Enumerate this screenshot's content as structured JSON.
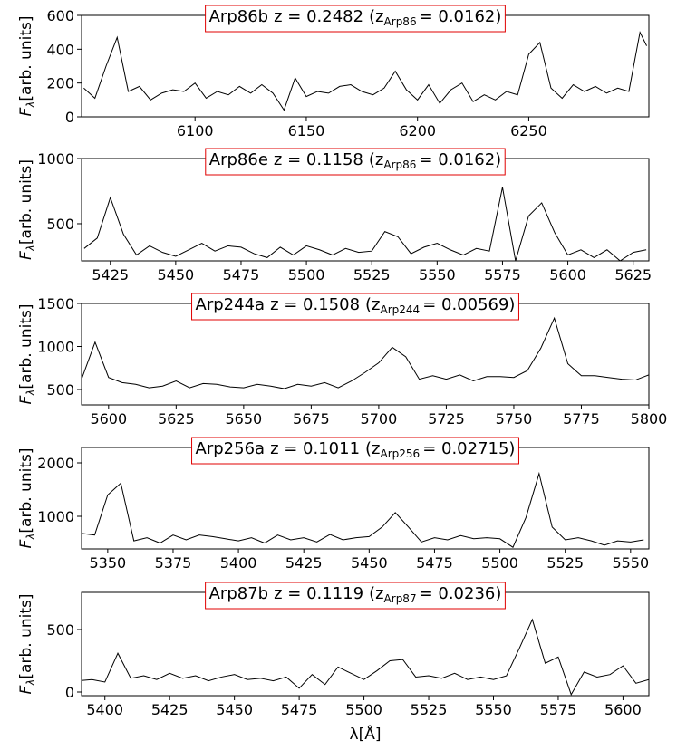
{
  "chart_data": [
    {
      "type": "line",
      "title": {
        "galaxy": "Arp86b",
        "z": "z = 0.2482",
        "ref": "(z",
        "ref_sub": "Arp86",
        "ref_value": "= 0.0162)"
      },
      "ylabel": "F",
      "ylabel_sub": "λ",
      "ylabel_rest": "[arb. units]",
      "color": "#000000",
      "x": [
        6050,
        6055,
        6060,
        6065,
        6070,
        6075,
        6080,
        6085,
        6090,
        6095,
        6100,
        6105,
        6110,
        6115,
        6120,
        6125,
        6130,
        6135,
        6140,
        6145,
        6150,
        6155,
        6160,
        6165,
        6170,
        6175,
        6180,
        6185,
        6190,
        6195,
        6200,
        6205,
        6210,
        6215,
        6220,
        6225,
        6230,
        6235,
        6240,
        6245,
        6250,
        6255,
        6260,
        6265,
        6270,
        6275,
        6280,
        6285,
        6290,
        6295,
        6300,
        6303
      ],
      "values": [
        170,
        110,
        300,
        470,
        150,
        180,
        100,
        140,
        160,
        150,
        200,
        110,
        150,
        130,
        180,
        140,
        190,
        140,
        40,
        230,
        120,
        150,
        140,
        180,
        190,
        150,
        130,
        170,
        270,
        160,
        100,
        190,
        80,
        160,
        200,
        90,
        130,
        100,
        150,
        130,
        370,
        440,
        170,
        110,
        190,
        150,
        180,
        140,
        170,
        150,
        500,
        420
      ],
      "xlim": [
        6049,
        6304
      ],
      "xticks": [
        6100,
        6150,
        6200,
        6250
      ],
      "ylim": [
        0,
        600
      ],
      "yticks": [
        0,
        200,
        400,
        600
      ]
    },
    {
      "type": "line",
      "title": {
        "galaxy": "Arp86e",
        "z": "z = 0.1158",
        "ref": "(z",
        "ref_sub": "Arp86",
        "ref_value": "= 0.0162)"
      },
      "ylabel": "F",
      "ylabel_sub": "λ",
      "ylabel_rest": "[arb. units]",
      "color": "#000000",
      "x": [
        5415,
        5420,
        5425,
        5430,
        5435,
        5440,
        5445,
        5450,
        5455,
        5460,
        5465,
        5470,
        5475,
        5480,
        5485,
        5490,
        5495,
        5500,
        5505,
        5510,
        5515,
        5520,
        5525,
        5530,
        5535,
        5540,
        5545,
        5550,
        5555,
        5560,
        5565,
        5570,
        5575,
        5580,
        5585,
        5590,
        5595,
        5600,
        5605,
        5610,
        5615,
        5620,
        5625,
        5630
      ],
      "values": [
        310,
        390,
        700,
        420,
        260,
        330,
        280,
        250,
        300,
        350,
        290,
        330,
        320,
        270,
        240,
        320,
        260,
        330,
        300,
        260,
        310,
        280,
        290,
        440,
        400,
        270,
        320,
        350,
        300,
        260,
        310,
        290,
        780,
        215,
        560,
        660,
        430,
        260,
        300,
        240,
        300,
        215,
        280,
        300
      ],
      "xlim": [
        5414,
        5631
      ],
      "xticks": [
        5425,
        5450,
        5475,
        5500,
        5525,
        5550,
        5575,
        5600,
        5625
      ],
      "ylim": [
        215,
        1000
      ],
      "yticks": [
        500,
        1000
      ]
    },
    {
      "type": "line",
      "title": {
        "galaxy": "Arp244a",
        "z": "z = 0.1508",
        "ref": "(z",
        "ref_sub": "Arp244",
        "ref_value": "= 0.00569)"
      },
      "ylabel": "F",
      "ylabel_sub": "λ",
      "ylabel_rest": "[arb. units]",
      "color": "#000000",
      "x": [
        5590,
        5595,
        5600,
        5605,
        5610,
        5615,
        5620,
        5625,
        5630,
        5635,
        5640,
        5645,
        5650,
        5655,
        5660,
        5665,
        5670,
        5675,
        5680,
        5685,
        5690,
        5695,
        5700,
        5705,
        5710,
        5715,
        5720,
        5725,
        5730,
        5735,
        5740,
        5745,
        5750,
        5755,
        5760,
        5765,
        5770,
        5775,
        5780,
        5785,
        5790,
        5795,
        5800
      ],
      "values": [
        620,
        1050,
        640,
        580,
        560,
        520,
        540,
        600,
        520,
        570,
        560,
        530,
        520,
        560,
        540,
        510,
        560,
        540,
        580,
        520,
        600,
        700,
        810,
        990,
        880,
        620,
        660,
        620,
        670,
        600,
        650,
        650,
        640,
        720,
        980,
        1330,
        800,
        660,
        660,
        640,
        620,
        610,
        670
      ],
      "xlim": [
        5590,
        5800
      ],
      "xticks": [
        5600,
        5625,
        5650,
        5675,
        5700,
        5725,
        5750,
        5775,
        5800
      ],
      "ylim": [
        321,
        1500
      ],
      "yticks": [
        500,
        1000,
        1500
      ]
    },
    {
      "type": "line",
      "title": {
        "galaxy": "Arp256a",
        "z": "z = 0.1011",
        "ref": "(z",
        "ref_sub": "Arp256",
        "ref_value": "= 0.02715)"
      },
      "ylabel": "F",
      "ylabel_sub": "λ",
      "ylabel_rest": "[arb. units]",
      "color": "#000000",
      "x": [
        5340,
        5345,
        5350,
        5355,
        5360,
        5365,
        5370,
        5375,
        5380,
        5385,
        5390,
        5395,
        5400,
        5405,
        5410,
        5415,
        5420,
        5425,
        5430,
        5435,
        5440,
        5445,
        5450,
        5455,
        5460,
        5465,
        5470,
        5475,
        5480,
        5485,
        5490,
        5495,
        5500,
        5505,
        5510,
        5515,
        5520,
        5525,
        5530,
        5535,
        5540,
        5545,
        5550,
        5555
      ],
      "values": [
        680,
        650,
        1400,
        1620,
        540,
        600,
        500,
        650,
        560,
        650,
        620,
        580,
        540,
        600,
        500,
        650,
        560,
        600,
        520,
        660,
        560,
        600,
        620,
        800,
        1070,
        800,
        520,
        600,
        560,
        640,
        580,
        600,
        580,
        420,
        980,
        1800,
        800,
        560,
        600,
        540,
        460,
        540,
        520,
        560
      ],
      "xlim": [
        5340,
        5557
      ],
      "xticks": [
        5350,
        5375,
        5400,
        5425,
        5450,
        5475,
        5500,
        5525,
        5550
      ],
      "ylim": [
        390,
        2288
      ],
      "yticks": [
        1000,
        2000
      ]
    },
    {
      "type": "line",
      "title": {
        "galaxy": "Arp87b",
        "z": "z = 0.1119",
        "ref": "(z",
        "ref_sub": "Arp87",
        "ref_value": "= 0.0236)"
      },
      "ylabel": "F",
      "ylabel_sub": "λ",
      "ylabel_rest": "[arb. units]",
      "xlabel": "λ[Å]",
      "color": "#000000",
      "x": [
        5390,
        5395,
        5400,
        5405,
        5410,
        5415,
        5420,
        5425,
        5430,
        5435,
        5440,
        5445,
        5450,
        5455,
        5460,
        5465,
        5470,
        5475,
        5480,
        5485,
        5490,
        5495,
        5500,
        5505,
        5510,
        5515,
        5520,
        5525,
        5530,
        5535,
        5540,
        5545,
        5550,
        5555,
        5560,
        5565,
        5570,
        5575,
        5580,
        5585,
        5590,
        5595,
        5600,
        5605,
        5610
      ],
      "values": [
        90,
        100,
        80,
        310,
        110,
        130,
        100,
        150,
        110,
        130,
        90,
        120,
        140,
        100,
        110,
        90,
        120,
        30,
        140,
        60,
        200,
        150,
        100,
        170,
        250,
        260,
        120,
        130,
        110,
        150,
        100,
        120,
        100,
        130,
        350,
        580,
        230,
        280,
        -20,
        160,
        120,
        140,
        210,
        70,
        100
      ],
      "xlim": [
        5391,
        5610
      ],
      "xticks": [
        5400,
        5425,
        5450,
        5475,
        5500,
        5525,
        5550,
        5575,
        5600
      ],
      "ylim": [
        -29,
        797
      ],
      "yticks": [
        0,
        500
      ]
    }
  ]
}
